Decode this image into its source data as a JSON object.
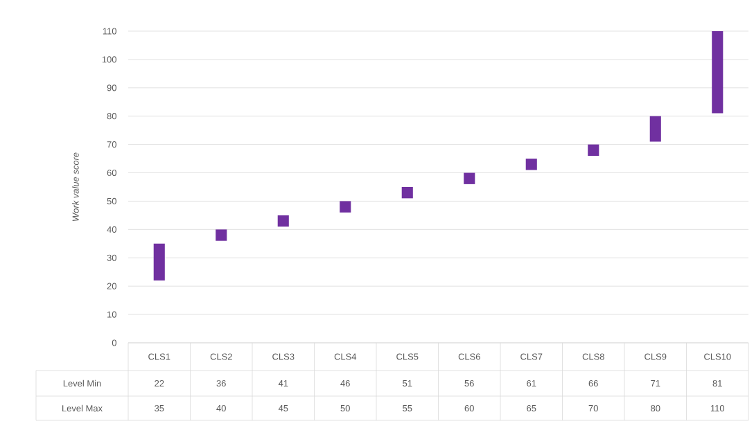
{
  "chart_data": {
    "type": "bar",
    "ylabel": "*Work value score*",
    "categories": [
      "CLS1",
      "CLS2",
      "CLS3",
      "CLS4",
      "CLS5",
      "CLS6",
      "CLS7",
      "CLS8",
      "CLS9",
      "CLS10"
    ],
    "base": [
      22,
      36,
      41,
      46,
      51,
      56,
      61,
      66,
      71,
      81
    ],
    "values": [
      13,
      4,
      4,
      4,
      4,
      4,
      4,
      4,
      9,
      29
    ],
    "color": "#7030a0",
    "ylim": [
      0,
      110
    ],
    "yticks": [
      0,
      10,
      20,
      30,
      40,
      50,
      60,
      70,
      80,
      90,
      100,
      110
    ],
    "grid": "y",
    "annotations": [
      "Level Min",
      "Level Max",
      "22",
      "36",
      "41",
      "46",
      "51",
      "56",
      "61",
      "66",
      "71",
      "81",
      "35",
      "40",
      "45",
      "50",
      "55",
      "60",
      "65",
      "70",
      "80",
      "110"
    ]
  }
}
